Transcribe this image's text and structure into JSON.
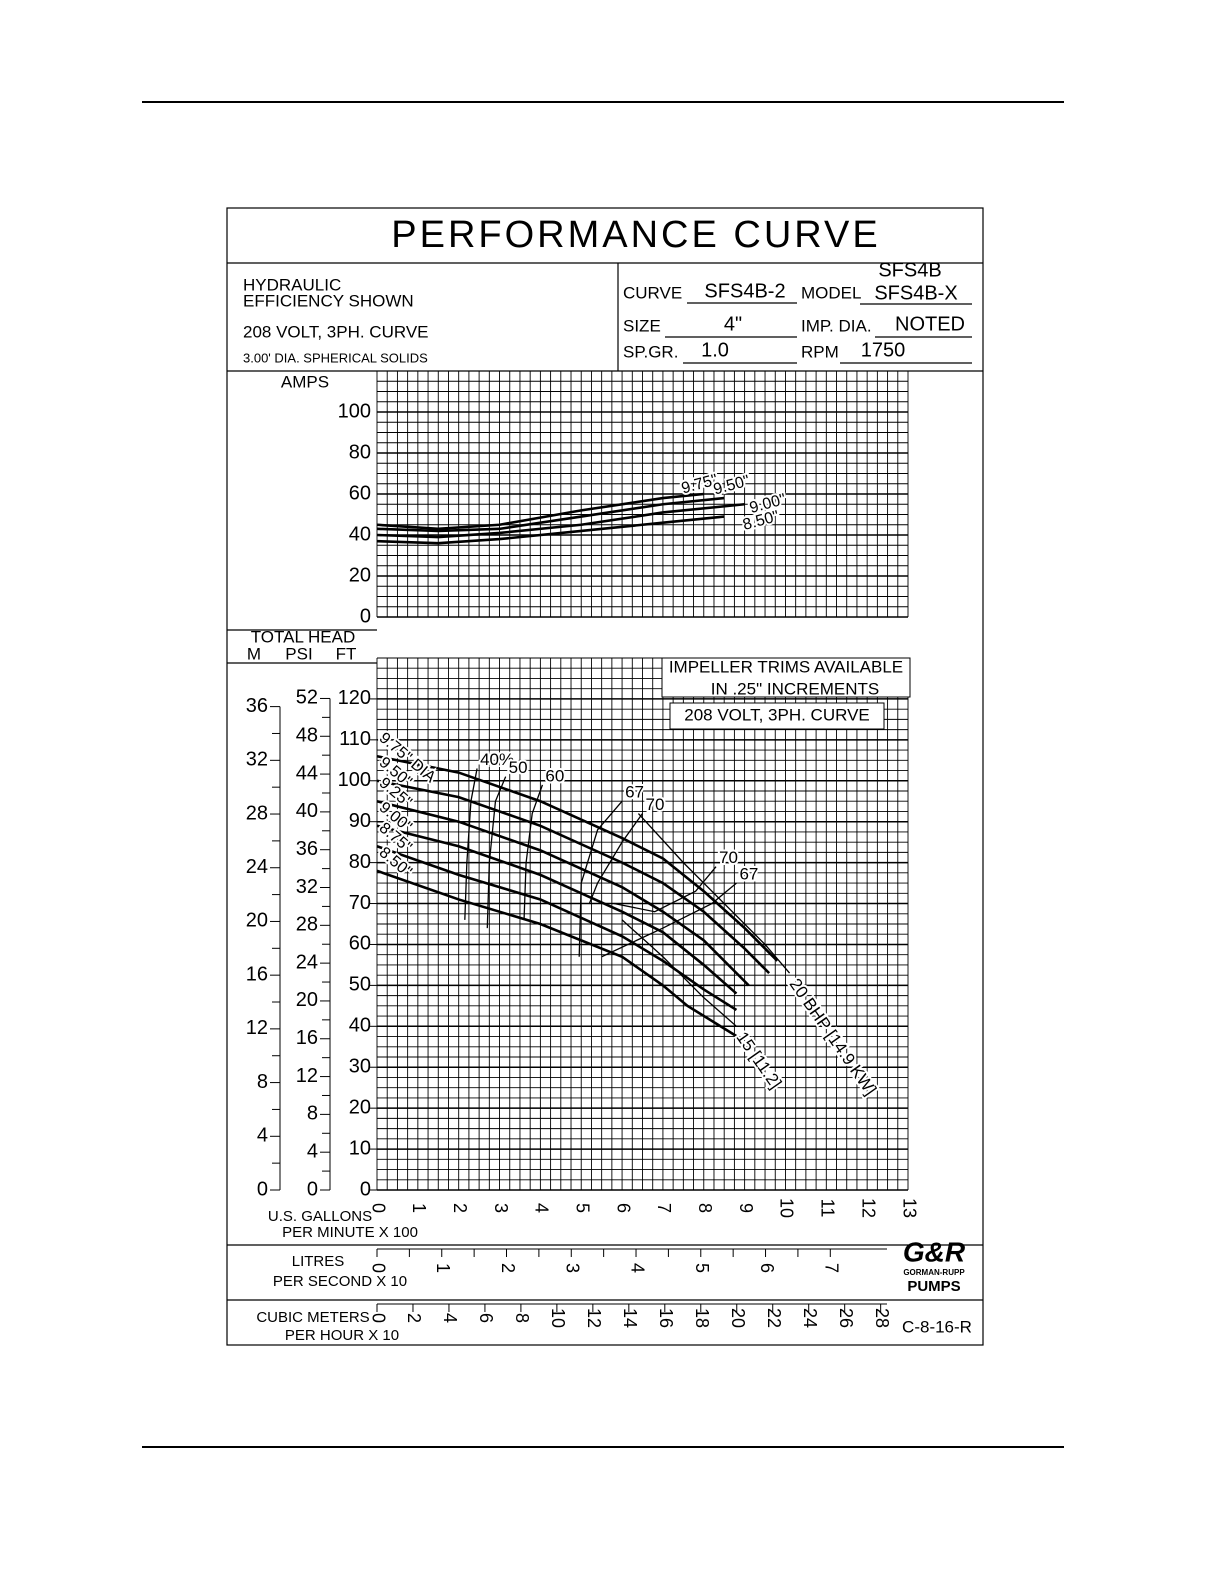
{
  "header": {
    "title": "PERFORMANCE CURVE",
    "notes": [
      "HYDRAULIC",
      "EFFICIENCY SHOWN",
      "208 VOLT, 3PH. CURVE",
      "3.00' DIA. SPHERICAL SOLIDS"
    ],
    "specs": {
      "curve_label": "CURVE",
      "curve": "SFS4B-2",
      "model_label": "MODEL",
      "model": [
        "SFS4B",
        "SFS4B-X"
      ],
      "size_label": "SIZE",
      "size": "4\"",
      "imp_dia_label": "IMP. DIA.",
      "imp_dia": "NOTED",
      "sp_gr_label": "SP.GR.",
      "sp_gr": "1.0",
      "rpm_label": "RPM",
      "rpm": "1750"
    }
  },
  "chart_data": [
    {
      "type": "line",
      "ylabel": "AMPS",
      "xlim": [
        0,
        13
      ],
      "ylim": [
        0,
        120
      ],
      "yticks": [
        0,
        20,
        40,
        60,
        80,
        100
      ],
      "grid": true,
      "color": "#000000",
      "series": [
        {
          "name": "9.75\"",
          "x": [
            0,
            1.5,
            3,
            5,
            7,
            8
          ],
          "values": [
            45,
            43,
            45,
            52,
            58,
            60
          ]
        },
        {
          "name": "9.50\"",
          "x": [
            0,
            1.5,
            3,
            5,
            7,
            8.5
          ],
          "values": [
            43,
            42,
            43,
            49,
            55,
            58
          ]
        },
        {
          "name": "9.00\"",
          "x": [
            0,
            1.5,
            3,
            5,
            7,
            9
          ],
          "values": [
            40,
            39,
            41,
            45,
            51,
            55
          ]
        },
        {
          "name": "8.50\"",
          "x": [
            0,
            1.5,
            3,
            5,
            7,
            8.5
          ],
          "values": [
            37,
            36,
            38,
            42,
            46,
            49
          ]
        }
      ]
    },
    {
      "type": "line",
      "ylabel": "TOTAL HEAD",
      "ylabel_units": [
        "M",
        "PSI",
        "FT"
      ],
      "xlabel": [
        "U.S. GALLONS",
        "PER MINUTE X 100"
      ],
      "xlim": [
        0,
        13
      ],
      "xticks": [
        0,
        1,
        2,
        3,
        4,
        5,
        6,
        7,
        8,
        9,
        10,
        11,
        12,
        13
      ],
      "ylim": [
        0,
        130
      ],
      "yticks": [
        0,
        10,
        20,
        30,
        40,
        50,
        60,
        70,
        80,
        90,
        100,
        110,
        120
      ],
      "y_m_lim": [
        0,
        39.62
      ],
      "y_m_ticks": [
        0,
        4,
        8,
        12,
        16,
        20,
        24,
        28,
        32,
        36
      ],
      "y_psi_lim": [
        0,
        56.28
      ],
      "y_psi_ticks": [
        0,
        4,
        8,
        12,
        16,
        20,
        24,
        28,
        32,
        36,
        40,
        44,
        48,
        52
      ],
      "x_lps_label": [
        "LITRES",
        "PER SECOND X 10"
      ],
      "x_lps_lim": [
        0,
        8.2
      ],
      "x_lps_ticks": [
        0,
        1,
        2,
        3,
        4,
        5,
        6,
        7
      ],
      "x_m3h_label": [
        "CUBIC METERS",
        "PER HOUR X 10"
      ],
      "x_m3h_lim": [
        0,
        29.52
      ],
      "x_m3h_ticks": [
        0,
        2,
        4,
        6,
        8,
        10,
        12,
        14,
        16,
        18,
        20,
        22,
        24,
        26,
        28
      ],
      "annotations": [
        "IMPELLER TRIMS AVAILABLE",
        "IN .25\" INCREMENTS",
        "208 VOLT, 3PH. CURVE"
      ],
      "grid": true,
      "color": "#000000",
      "series": [
        {
          "name": "9.75\" DIA",
          "x": [
            0,
            2,
            4,
            6,
            7,
            8,
            9,
            9.8
          ],
          "values": [
            106,
            102,
            95,
            86,
            81,
            73,
            64,
            56
          ]
        },
        {
          "name": "9.50\"",
          "x": [
            0,
            2,
            4,
            6,
            7,
            8,
            9,
            9.6
          ],
          "values": [
            100,
            96,
            89,
            80,
            75,
            68,
            59,
            53
          ]
        },
        {
          "name": "9.25\"",
          "x": [
            0,
            2,
            4,
            6,
            7,
            8,
            9.1
          ],
          "values": [
            95,
            90,
            83,
            74,
            68,
            61,
            50
          ]
        },
        {
          "name": "9.00\"",
          "x": [
            0,
            2,
            4,
            6,
            7,
            8,
            8.8
          ],
          "values": [
            89,
            84,
            77,
            68,
            63,
            55,
            48
          ]
        },
        {
          "name": "8.75\"",
          "x": [
            0,
            2,
            4,
            6,
            7,
            8,
            8.8
          ],
          "values": [
            84,
            77,
            71,
            62,
            56,
            49,
            44
          ]
        },
        {
          "name": "8.50\"",
          "x": [
            0,
            2,
            4,
            6,
            7,
            7.6,
            8.9
          ],
          "values": [
            78,
            71,
            65,
            57,
            50,
            45,
            37
          ]
        }
      ],
      "efficiency_curves": [
        {
          "name": "40%",
          "x": [
            2.15,
            2.2,
            2.3,
            2.45
          ],
          "values": [
            66,
            80,
            95,
            103
          ]
        },
        {
          "name": "50",
          "x": [
            2.7,
            2.75,
            2.9,
            3.15
          ],
          "values": [
            64,
            80,
            95,
            101
          ]
        },
        {
          "name": "60",
          "x": [
            3.6,
            3.65,
            3.8,
            4.05
          ],
          "values": [
            66,
            80,
            92,
            99
          ]
        },
        {
          "name": "67",
          "x": [
            4.95,
            5,
            5.4,
            6
          ],
          "values": [
            57,
            75,
            88,
            95
          ]
        },
        {
          "name": "70",
          "x": [
            5.2,
            5.4,
            6,
            6.5
          ],
          "values": [
            70,
            75,
            85,
            92
          ]
        },
        {
          "name": "70",
          "x": [
            5.8,
            6.8,
            7.8,
            8.3
          ],
          "values": [
            70,
            68,
            73,
            79
          ]
        },
        {
          "name": "67",
          "x": [
            5.5,
            7,
            8.2,
            8.8
          ],
          "values": [
            57,
            64,
            70,
            75
          ]
        }
      ],
      "power_curves": [
        {
          "name": "20 BHP [14.9 KW]",
          "x": [
            6.4,
            7.5,
            8.5,
            9.5,
            10.1
          ],
          "values": [
            92,
            80,
            70,
            60,
            53
          ]
        },
        {
          "name": "15 [11.2]",
          "x": [
            6,
            7,
            8,
            8.8
          ],
          "values": [
            66,
            57,
            47,
            40
          ]
        }
      ]
    }
  ],
  "logo": {
    "mark": "G&R",
    "name": "GORMAN-RUPP",
    "brand": "PUMPS"
  },
  "code": "C-8-16-R"
}
